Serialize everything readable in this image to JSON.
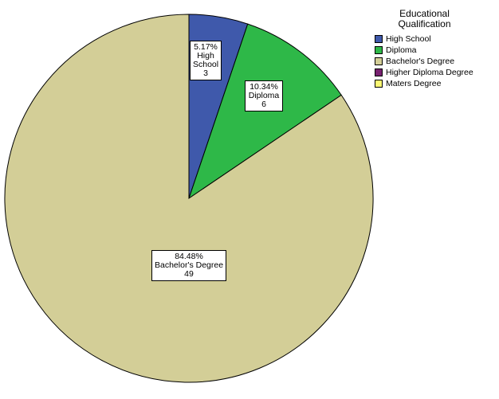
{
  "chart_data": {
    "type": "pie",
    "legend_title_lines": [
      "Educational",
      "Qualification"
    ],
    "legend_position": "top-right",
    "slices": [
      {
        "name": "High School",
        "value": 3,
        "percent": "5.17%",
        "label_lines": [
          "5.17%",
          "High",
          "School",
          "3"
        ],
        "color": "#3f59ab"
      },
      {
        "name": "Diploma",
        "value": 6,
        "percent": "10.34%",
        "label_lines": [
          "10.34%",
          "Diploma",
          "6"
        ],
        "color": "#2eb848"
      },
      {
        "name": "Bachelor's Degree",
        "value": 49,
        "percent": "84.48%",
        "label_lines": [
          "84.48%",
          "Bachelor's Degree",
          "49"
        ],
        "color": "#d3ce97"
      },
      {
        "name": "Higher Diploma Degree",
        "value": 0,
        "percent": "",
        "label_lines": [],
        "color": "#782170"
      },
      {
        "name": "Maters Degree",
        "value": 0,
        "percent": "",
        "label_lines": [],
        "color": "#fbf873"
      }
    ]
  }
}
